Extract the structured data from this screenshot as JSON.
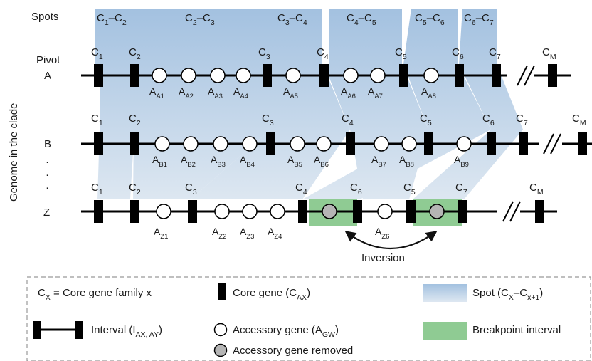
{
  "spots_label": "Spots",
  "axis_label": "Genome in the clade",
  "genome_a_label": "Pivot\nA",
  "genome_b_label": "B",
  "genome_z_label": "Z",
  "ellipsis": "·",
  "inversion_label": "Inversion",
  "spots": [
    "C1–C2",
    "C2–C3",
    "C3–C4",
    "C4–C5",
    "C5–C6",
    "C6–C7"
  ],
  "core_labels": {
    "A": [
      "C1",
      "C2",
      "C3",
      "C4",
      "C5",
      "C6",
      "C7",
      "CM"
    ],
    "B": [
      "C1",
      "C2",
      "C3",
      "C4",
      "C5",
      "C6",
      "C7",
      "CM"
    ],
    "Z": [
      "C1",
      "C2",
      "C3",
      "C4",
      "C6",
      "C5",
      "C7",
      "CM"
    ]
  },
  "accessory_labels": {
    "A": [
      "AA1",
      "AA2",
      "AA3",
      "AA4",
      "AA5",
      "AA6",
      "AA7",
      "AA8"
    ],
    "B": [
      "AB1",
      "AB2",
      "AB3",
      "AB4",
      "AB5",
      "AB6",
      "AB7",
      "AB8",
      "AB9"
    ],
    "Z": [
      "AZ1",
      "AZ2",
      "AZ3",
      "AZ4",
      "AZ6"
    ]
  },
  "legend": {
    "core_family": "CX = Core gene family x",
    "core_gene": "Core gene (CAX)",
    "spot": "Spot (CX–Cx+1)",
    "interval": "Interval (IAX, AY)",
    "accessory": "Accessory gene (AGW)",
    "breakpoint": "Breakpoint interval",
    "removed": "Accessory gene removed"
  },
  "colors": {
    "spot_top": "#a9c5e2",
    "spot_bottom": "#eaf0f6",
    "breakpoint": "#8fcb93",
    "removed_fill": "#b5b5b5",
    "core_fill": "#000000"
  }
}
